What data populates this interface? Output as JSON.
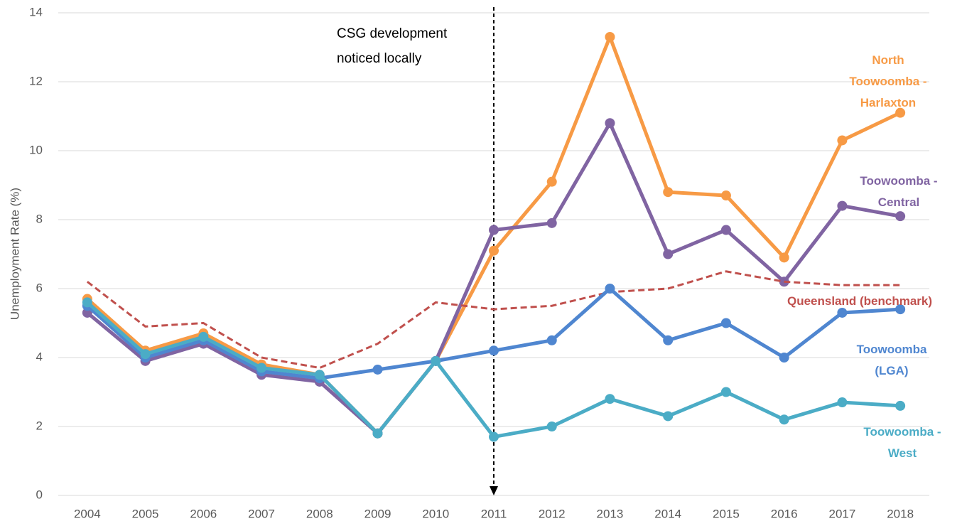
{
  "chart_data": {
    "type": "line",
    "y_label": "Unemployment Rate (%)",
    "annotation": "CSG development noticed locally",
    "annotation_x": "2011",
    "categories": [
      "2004",
      "2005",
      "2006",
      "2007",
      "2008",
      "2009",
      "2010",
      "2011",
      "2012",
      "2013",
      "2014",
      "2015",
      "2016",
      "2017",
      "2018"
    ],
    "ylim": [
      0,
      14
    ],
    "yticks": [
      0,
      2,
      4,
      6,
      8,
      10,
      12,
      14
    ],
    "grid": true,
    "series": [
      {
        "name": "North Toowoomba - Harlaxton",
        "color": "#f79a45",
        "values": [
          5.7,
          4.2,
          4.7,
          3.8,
          3.5,
          1.8,
          3.9,
          7.1,
          9.1,
          13.3,
          8.8,
          8.7,
          6.9,
          10.3,
          11.1
        ]
      },
      {
        "name": "Toowoomba - Central",
        "color": "#8064a2",
        "values": [
          5.3,
          3.9,
          4.4,
          3.5,
          3.3,
          1.8,
          3.9,
          7.7,
          7.9,
          10.8,
          7.0,
          7.7,
          6.2,
          8.4,
          8.1
        ]
      },
      {
        "name": "Queensland (benchmark)",
        "color": "#c0504d",
        "dashed": true,
        "values": [
          6.2,
          4.9,
          5.0,
          4.0,
          3.7,
          4.4,
          5.6,
          5.4,
          5.5,
          5.9,
          6.0,
          6.5,
          6.2,
          6.1,
          6.1
        ]
      },
      {
        "name": "Toowoomba (LGA)",
        "color": "#4f86d0",
        "values": [
          5.5,
          4.0,
          4.5,
          3.6,
          3.4,
          3.65,
          3.9,
          4.2,
          4.5,
          6.0,
          4.5,
          5.0,
          4.0,
          5.3,
          5.4
        ]
      },
      {
        "name": "Toowoomba - West",
        "color": "#4bacc6",
        "values": [
          5.6,
          4.1,
          4.6,
          3.7,
          3.5,
          1.8,
          3.9,
          1.7,
          2.0,
          2.8,
          2.3,
          3.0,
          2.2,
          2.7,
          2.6
        ]
      }
    ]
  }
}
